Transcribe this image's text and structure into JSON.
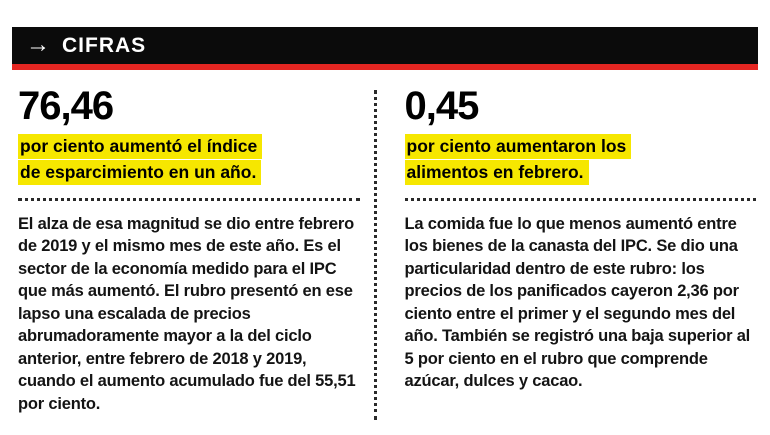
{
  "header": {
    "arrow": "→",
    "title": "CIFRAS"
  },
  "colors": {
    "header_bg": "#0b0b0b",
    "accent_red": "#e52622",
    "highlight_yellow": "#f6e700",
    "text_black": "#0e0e0e"
  },
  "left_column": {
    "figure": "76,46",
    "highlight_line1": "por ciento aumentó el índice",
    "highlight_line2": "de esparcimiento en un año.",
    "body": "El alza de esa magnitud se dio entre febrero de 2019 y el mismo mes de este año. Es el sector de la economía medido para el IPC que más aumentó. El rubro presentó en ese lapso una escalada de precios abrumadoramente mayor a la del ciclo anterior, entre febrero de 2018 y 2019, cuando el aumento acumulado fue del 55,51 por ciento."
  },
  "right_column": {
    "figure": "0,45",
    "highlight_line1": "por ciento aumentaron los",
    "highlight_line2": "alimentos en febrero.",
    "body": "La comida fue lo que menos aumentó entre los bienes de la canasta del IPC. Se dio una particularidad dentro de este rubro: los precios de los panificados cayeron 2,36 por ciento entre el primer y el segundo mes del año. También se registró una baja superior al 5 por ciento en el rubro que comprende azúcar, dulces y cacao."
  }
}
